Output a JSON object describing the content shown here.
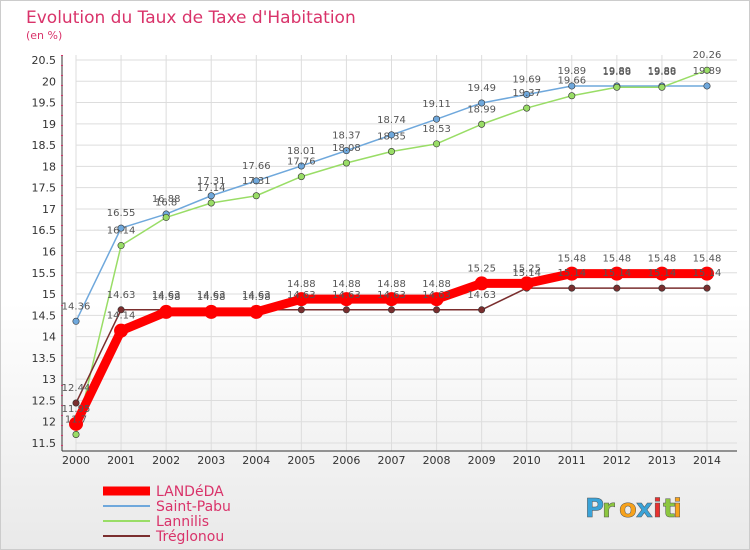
{
  "chart_data": {
    "type": "line",
    "title": "Evolution du Taux de Taxe d'Habitation",
    "subtitle": "(en %)",
    "x": [
      "2000",
      "2001",
      "2002",
      "2003",
      "2004",
      "2005",
      "2006",
      "2007",
      "2008",
      "2009",
      "2010",
      "2011",
      "2012",
      "2013",
      "2014"
    ],
    "yticks": [
      "11.5",
      "12",
      "12.5",
      "13",
      "13.5",
      "14",
      "14.5",
      "15",
      "15.5",
      "16",
      "16.5",
      "17",
      "17.5",
      "18",
      "18.5",
      "19",
      "19.5",
      "20",
      "20.5"
    ],
    "ylim": [
      11.5,
      20.5
    ],
    "grid": true,
    "series": [
      {
        "name": "LANDéDA",
        "color": "#ff0000",
        "width": 9,
        "values": [
          11.95,
          14.14,
          14.58,
          14.58,
          14.58,
          14.88,
          14.88,
          14.88,
          14.88,
          15.25,
          15.25,
          15.48,
          15.48,
          15.48,
          15.48
        ],
        "labels": [
          "11.95",
          "14.14",
          "14.58",
          "14.58",
          "14.58",
          "14.88",
          "14.88",
          "14.88",
          "14.88",
          "15.25",
          "15.25",
          "15.48",
          "15.48",
          "15.48",
          "15.48"
        ]
      },
      {
        "name": "Saint-Pabu",
        "color": "#6fa8dc",
        "width": 1.5,
        "values": [
          14.36,
          16.55,
          16.88,
          17.31,
          17.66,
          18.01,
          18.37,
          18.74,
          19.11,
          19.49,
          19.69,
          19.89,
          19.89,
          19.89,
          19.89
        ],
        "labels": [
          "14.36",
          "16.55",
          "16.88",
          "17.31",
          "17.66",
          "18.01",
          "18.37",
          "18.74",
          "19.11",
          "19.49",
          "19.69",
          "19.89",
          "19.89",
          "19.89",
          "19.89"
        ]
      },
      {
        "name": "Lannilis",
        "color": "#99dd66",
        "width": 1.5,
        "values": [
          11.7,
          16.14,
          16.8,
          17.14,
          17.31,
          17.76,
          18.08,
          18.35,
          18.53,
          18.99,
          19.37,
          19.66,
          19.86,
          19.86,
          20.26
        ],
        "labels": [
          "11.7",
          "16.14",
          "16.8",
          "17.14",
          "17.31",
          "17.76",
          "18.08",
          "18.35",
          "18.53",
          "18.99",
          "19.37",
          "19.66",
          "19.86",
          "19.86",
          "20.26"
        ]
      },
      {
        "name": "Tréglonou",
        "color": "#7a2e2e",
        "width": 1.5,
        "values": [
          12.44,
          14.63,
          14.63,
          14.63,
          14.63,
          14.63,
          14.63,
          14.63,
          14.63,
          14.63,
          15.14,
          15.14,
          15.14,
          15.14,
          15.14
        ],
        "labels": [
          "12.44",
          "14.63",
          "14.63",
          "14.63",
          "14.63",
          "14.63",
          "14.63",
          "14.63",
          "14.63",
          "14.63",
          "15.14",
          "15.14",
          "15.14",
          "15.14",
          "15.14"
        ]
      }
    ],
    "legend_position": "bottom-left"
  },
  "brand": {
    "letters": [
      "P",
      "r",
      "o",
      "x",
      "i",
      "t",
      "i"
    ],
    "colors": [
      "#3aa3d8",
      "#8cc63f",
      "#f7a21b",
      "#3aa3d8",
      "#e8312f",
      "#8cc63f",
      "#f7a21b"
    ]
  }
}
